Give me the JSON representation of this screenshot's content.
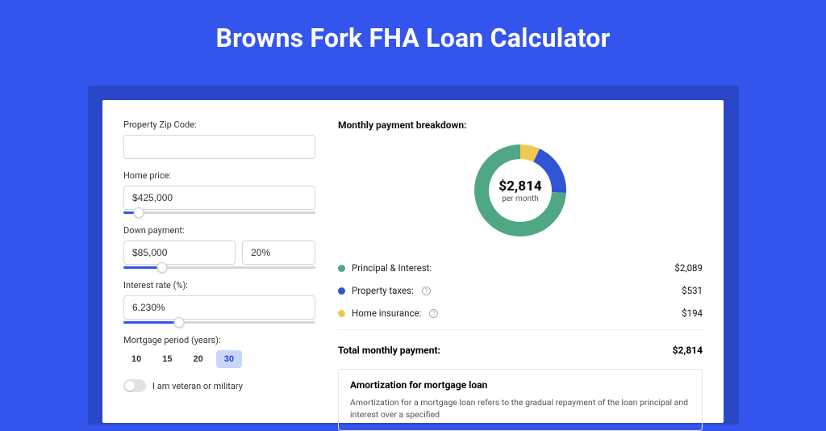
{
  "page": {
    "title": "Browns Fork FHA Loan Calculator",
    "bg_color": "#3355ee",
    "shadow_color": "#2a47c9",
    "card_bg": "#ffffff"
  },
  "form": {
    "zip": {
      "label": "Property Zip Code:",
      "value": ""
    },
    "home_price": {
      "label": "Home price:",
      "value": "$425,000",
      "slider_pct": 8
    },
    "down_payment": {
      "label": "Down payment:",
      "value": "$85,000",
      "pct_value": "20%",
      "slider_pct": 20
    },
    "interest": {
      "label": "Interest rate (%):",
      "value": "6.230%",
      "slider_pct": 29
    },
    "period": {
      "label": "Mortgage period (years):",
      "options": [
        "10",
        "15",
        "20",
        "30"
      ],
      "selected": "30"
    },
    "veteran": {
      "label": "I am veteran or military",
      "checked": false
    }
  },
  "breakdown": {
    "title": "Monthly payment breakdown:",
    "center_amount": "$2,814",
    "center_sub": "per month",
    "items": [
      {
        "label": "Principal & Interest:",
        "value": "$2,089",
        "color": "#4fa883",
        "info": false,
        "pct": 74.2
      },
      {
        "label": "Property taxes:",
        "value": "$531",
        "color": "#2f55d4",
        "info": true,
        "pct": 18.9
      },
      {
        "label": "Home insurance:",
        "value": "$194",
        "color": "#f1c94e",
        "info": true,
        "pct": 6.9
      }
    ],
    "total_label": "Total monthly payment:",
    "total_value": "$2,814"
  },
  "amortization": {
    "title": "Amortization for mortgage loan",
    "text": "Amortization for a mortgage loan refers to the gradual repayment of the loan principal and interest over a specified"
  },
  "donut": {
    "radius": 48,
    "stroke": 18,
    "bg": "#ffffff"
  }
}
